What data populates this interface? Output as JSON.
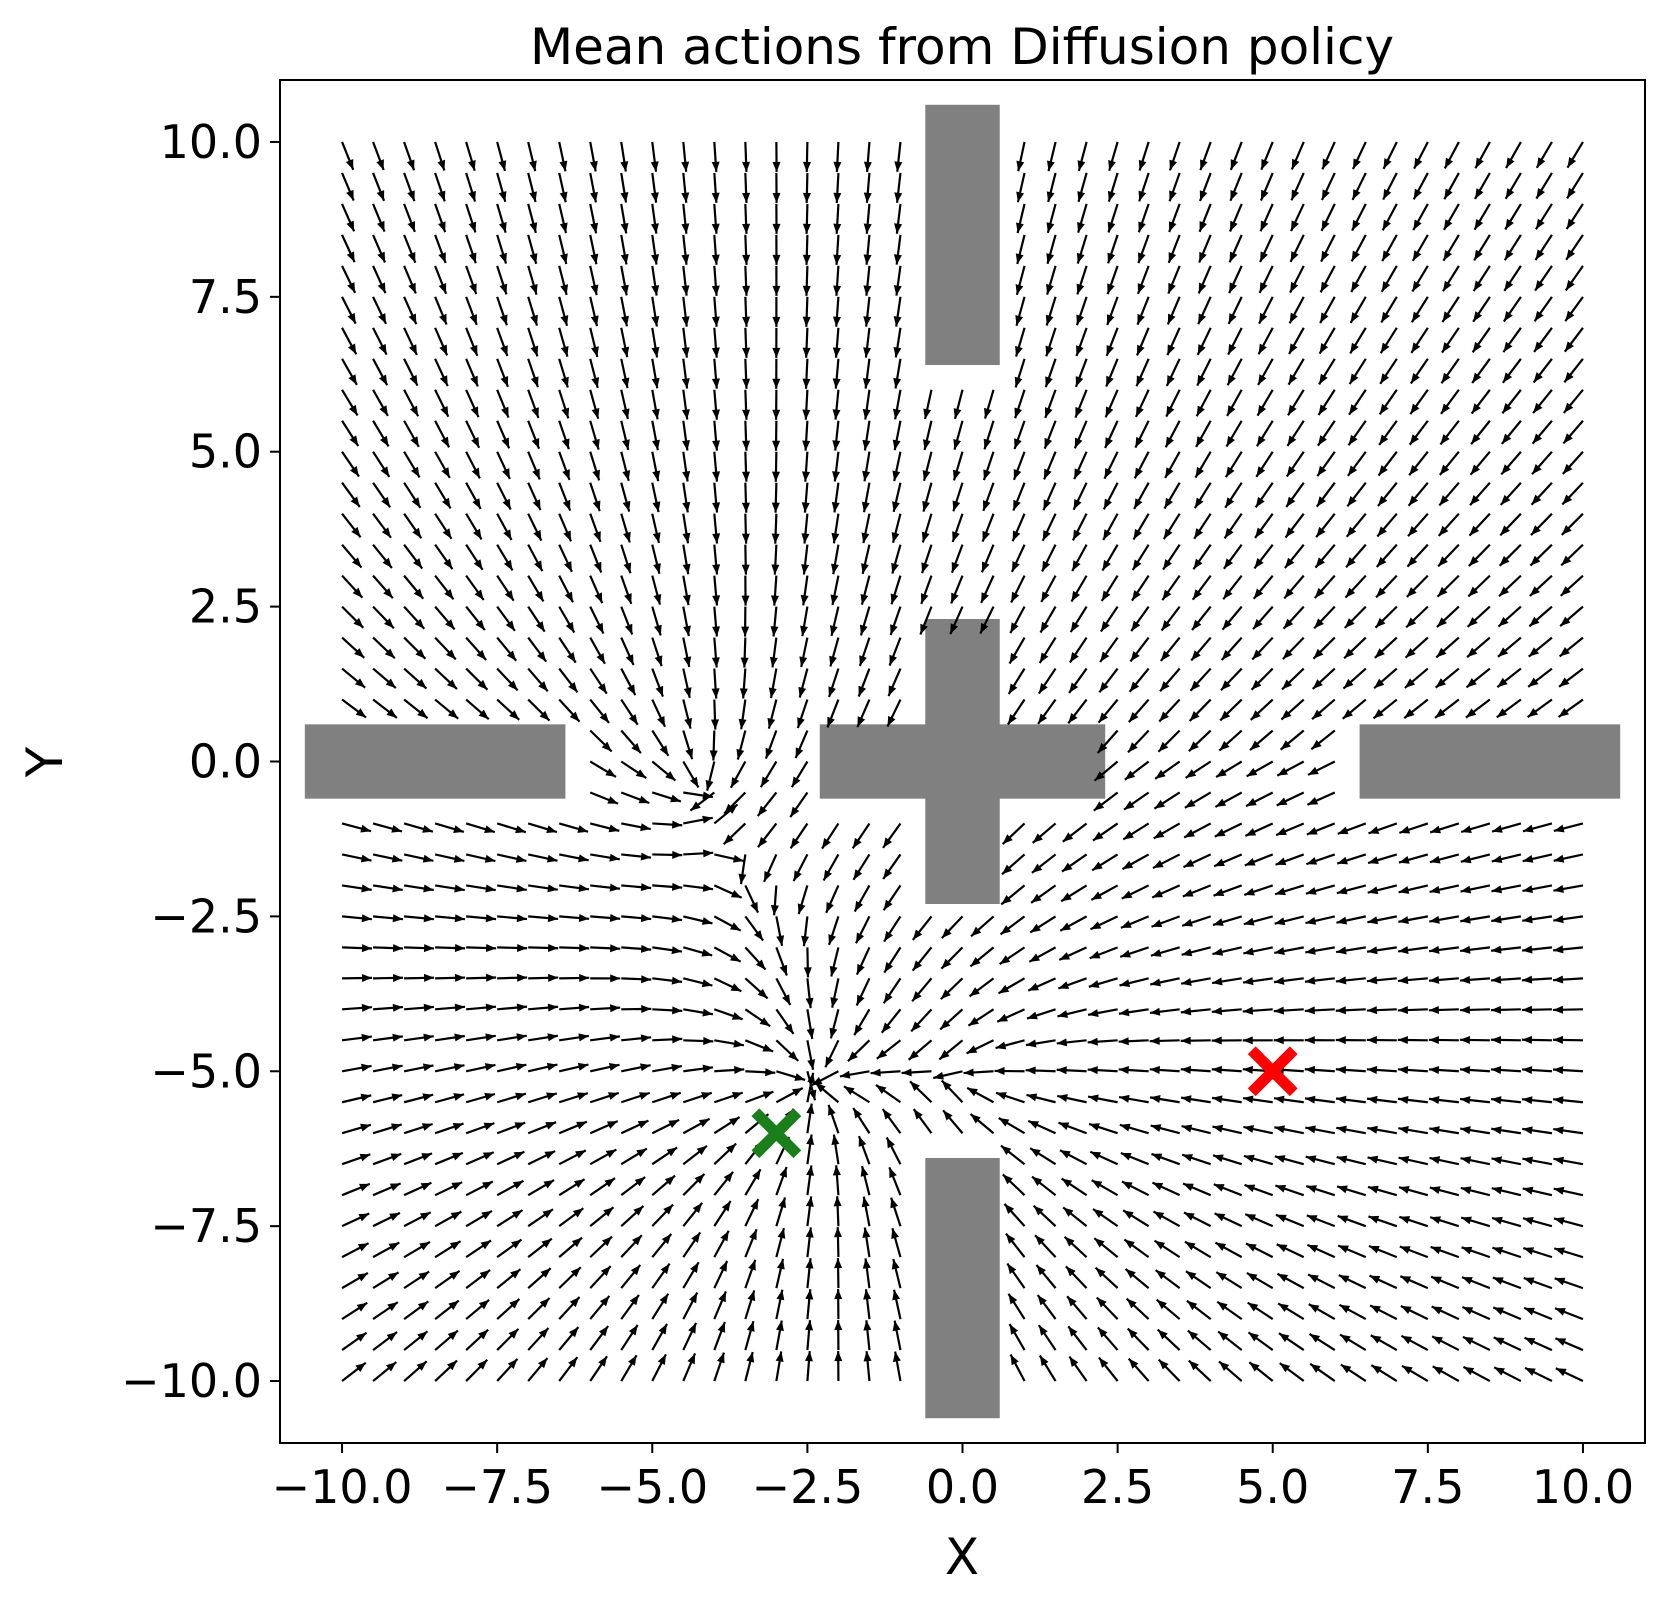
{
  "chart_data": {
    "type": "quiver",
    "title": "Mean actions from Diffusion policy",
    "xlabel": "X",
    "ylabel": "Y",
    "xlim": [
      -11,
      11
    ],
    "ylim": [
      -11,
      11
    ],
    "xticks": [
      -10.0,
      -7.5,
      -5.0,
      -2.5,
      0.0,
      2.5,
      5.0,
      7.5,
      10.0
    ],
    "yticks": [
      -10.0,
      -7.5,
      -5.0,
      -2.5,
      0.0,
      2.5,
      5.0,
      7.5,
      10.0
    ],
    "xtick_labels": [
      "−10.0",
      "−7.5",
      "−5.0",
      "−2.5",
      "0.0",
      "2.5",
      "5.0",
      "7.5",
      "10.0"
    ],
    "ytick_labels": [
      "−10.0",
      "−7.5",
      "−5.0",
      "−2.5",
      "0.0",
      "2.5",
      "5.0",
      "7.5",
      "10.0"
    ],
    "grid": false,
    "arrow_color": "#000000",
    "grid_points": {
      "x_start": -10,
      "x_end": 10,
      "y_start": -10,
      "y_end": 10,
      "count": 41
    },
    "field_sinks": [
      [
        -2.5,
        -5.3
      ],
      [
        -4.3,
        -0.3
      ],
      [
        0.2,
        -5.1
      ]
    ],
    "obstacles": [
      {
        "name": "top-bar",
        "x": [
          -0.6,
          0.6
        ],
        "y": [
          6.4,
          10.6
        ]
      },
      {
        "name": "center-vertical",
        "x": [
          -0.6,
          0.6
        ],
        "y": [
          -2.3,
          2.3
        ]
      },
      {
        "name": "center-horizontal",
        "x": [
          -2.3,
          2.3
        ],
        "y": [
          -0.6,
          0.6
        ]
      },
      {
        "name": "bottom-bar",
        "x": [
          -0.6,
          0.6
        ],
        "y": [
          -10.6,
          -6.4
        ]
      },
      {
        "name": "left-bar",
        "x": [
          -10.6,
          -6.4
        ],
        "y": [
          -0.6,
          0.6
        ]
      },
      {
        "name": "right-bar",
        "x": [
          6.4,
          10.6
        ],
        "y": [
          -0.6,
          0.6
        ]
      }
    ],
    "obstacle_color": "#808080",
    "markers": [
      {
        "name": "goal",
        "x": -3.0,
        "y": -6.0,
        "color": "#1a7f1a",
        "symbol": "x"
      },
      {
        "name": "start",
        "x": 5.0,
        "y": -5.0,
        "color": "#ff0000",
        "symbol": "x"
      }
    ]
  }
}
